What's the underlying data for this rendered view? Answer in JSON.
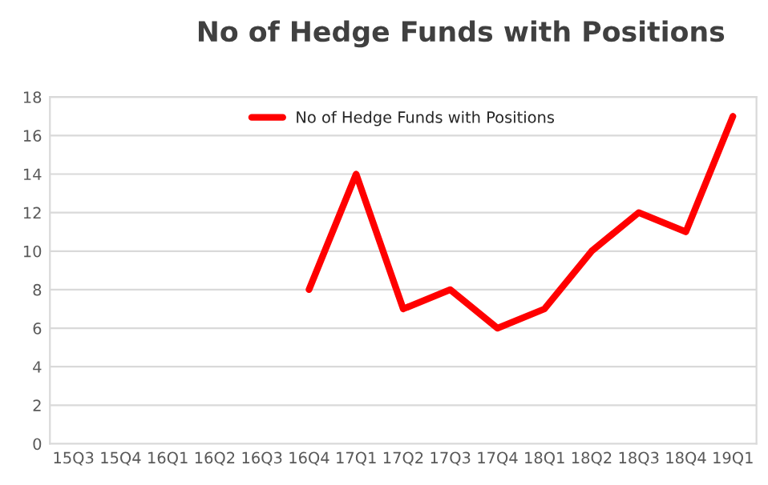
{
  "chart_data": {
    "type": "line",
    "title": "No of Hedge Funds with Positions",
    "categories": [
      "15Q3",
      "15Q4",
      "16Q1",
      "16Q2",
      "16Q3",
      "16Q4",
      "17Q1",
      "17Q2",
      "17Q3",
      "17Q4",
      "18Q1",
      "18Q2",
      "18Q3",
      "18Q4",
      "19Q1"
    ],
    "series": [
      {
        "name": "No of Hedge Funds with Positions",
        "color": "#ff0000",
        "values": [
          null,
          null,
          null,
          null,
          null,
          8,
          14,
          7,
          8,
          6,
          7,
          10,
          12,
          11,
          17
        ]
      }
    ],
    "ylim": [
      0,
      18
    ],
    "yticks": [
      0,
      2,
      4,
      6,
      8,
      10,
      12,
      14,
      16,
      18
    ],
    "grid": "y",
    "legend": "top",
    "marker": "none",
    "line_style": "solid"
  }
}
